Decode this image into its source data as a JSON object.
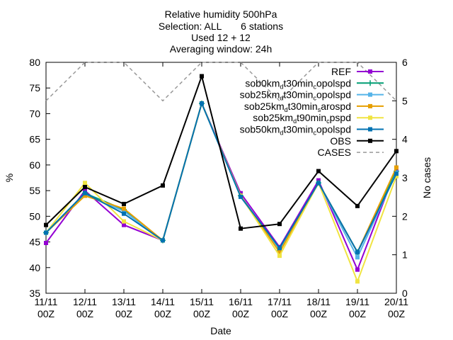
{
  "chart_data": {
    "type": "line",
    "title_lines": [
      "Relative humidity 500hPa",
      "Selection: ALL       6 stations",
      "Used 12 + 12",
      "Averaging window: 24h"
    ],
    "xlabel": "Date",
    "ylabel": "%",
    "y2label": "No cases",
    "ylim": [
      35,
      80
    ],
    "y_ticks": [
      "35",
      "40",
      "45",
      "50",
      "55",
      "60",
      "65",
      "70",
      "75",
      "80"
    ],
    "y2lim": [
      0,
      6
    ],
    "y2_ticks": [
      "0",
      "1",
      "2",
      "3",
      "4",
      "5",
      "6"
    ],
    "categories": [
      [
        "11/11",
        "00Z"
      ],
      [
        "12/11",
        "00Z"
      ],
      [
        "13/11",
        "00Z"
      ],
      [
        "14/11",
        "00Z"
      ],
      [
        "15/11",
        "00Z"
      ],
      [
        "16/11",
        "00Z"
      ],
      [
        "17/11",
        "00Z"
      ],
      [
        "18/11",
        "00Z"
      ],
      [
        "19/11",
        "00Z"
      ],
      [
        "20/11",
        "00Z"
      ]
    ],
    "legend_position": "top-right",
    "series": [
      {
        "name": "REF",
        "name_parts": [
          [
            "REF",
            ""
          ]
        ],
        "color": "#9400d3",
        "marker": "square",
        "axis": "y",
        "values": [
          44.8,
          55.0,
          48.3,
          45.3,
          72.0,
          54.5,
          44.0,
          57.0,
          39.6,
          59.3
        ]
      },
      {
        "name": "sob0km_dt30min_copolspd",
        "name_parts": [
          [
            "sob0km",
            ""
          ],
          [
            "d",
            "sub"
          ],
          [
            "t30min",
            ""
          ],
          [
            "c",
            "sub"
          ],
          [
            "opolspd",
            ""
          ]
        ],
        "color": "#009e73",
        "marker": "plus",
        "axis": "y",
        "values": [
          46.8,
          54.5,
          51.3,
          45.3,
          72.0,
          54.0,
          43.3,
          56.5,
          43.0,
          58.8
        ]
      },
      {
        "name": "sob25km_dt30min_copolspd",
        "name_parts": [
          [
            "sob25km",
            ""
          ],
          [
            "d",
            "sub"
          ],
          [
            "t30min",
            ""
          ],
          [
            "c",
            "sub"
          ],
          [
            "opolspd",
            ""
          ]
        ],
        "color": "#56b4e9",
        "marker": "square",
        "axis": "y",
        "values": [
          46.8,
          54.3,
          51.0,
          45.3,
          72.0,
          53.8,
          43.3,
          56.5,
          42.0,
          58.5
        ]
      },
      {
        "name": "sob25km_dt30min_sarospd",
        "name_parts": [
          [
            "sob25km",
            ""
          ],
          [
            "d",
            "sub"
          ],
          [
            "t30min",
            ""
          ],
          [
            "s",
            "sub"
          ],
          [
            "arospd",
            ""
          ]
        ],
        "color": "#e69f00",
        "marker": "square",
        "axis": "y",
        "values": [
          46.8,
          54.0,
          51.5,
          45.3,
          72.0,
          54.0,
          43.0,
          56.5,
          43.0,
          59.5
        ]
      },
      {
        "name": "sob25km_dt90min_cpspd",
        "name_parts": [
          [
            "sob25km",
            ""
          ],
          [
            "d",
            "sub"
          ],
          [
            "t90min",
            ""
          ],
          [
            "c",
            "sub"
          ],
          [
            "pspd",
            ""
          ]
        ],
        "color": "#f0e442",
        "marker": "square",
        "axis": "y",
        "values": [
          46.8,
          56.5,
          49.0,
          45.3,
          72.0,
          54.0,
          42.3,
          56.5,
          37.3,
          57.8
        ]
      },
      {
        "name": "sob50km_dt30min_copolspd",
        "name_parts": [
          [
            "sob50km",
            ""
          ],
          [
            "d",
            "sub"
          ],
          [
            "t30min",
            ""
          ],
          [
            "c",
            "sub"
          ],
          [
            "opolspd",
            ""
          ]
        ],
        "color": "#0072b2",
        "marker": "square",
        "axis": "y",
        "values": [
          46.8,
          54.5,
          50.5,
          45.3,
          72.0,
          53.8,
          43.8,
          56.5,
          43.0,
          58.3
        ]
      },
      {
        "name": "OBS",
        "name_parts": [
          [
            "OBS",
            ""
          ]
        ],
        "color": "#000000",
        "marker": "square",
        "axis": "y",
        "values": [
          48.3,
          55.7,
          52.4,
          56.0,
          77.3,
          47.6,
          48.5,
          58.8,
          52.0,
          62.7
        ]
      },
      {
        "name": "CASES",
        "name_parts": [
          [
            "CASES",
            ""
          ]
        ],
        "color": "#999999",
        "marker": "none",
        "dashed": true,
        "axis": "y2",
        "values": [
          5,
          6,
          6,
          5,
          6,
          6,
          5,
          6,
          6,
          5
        ]
      }
    ]
  }
}
